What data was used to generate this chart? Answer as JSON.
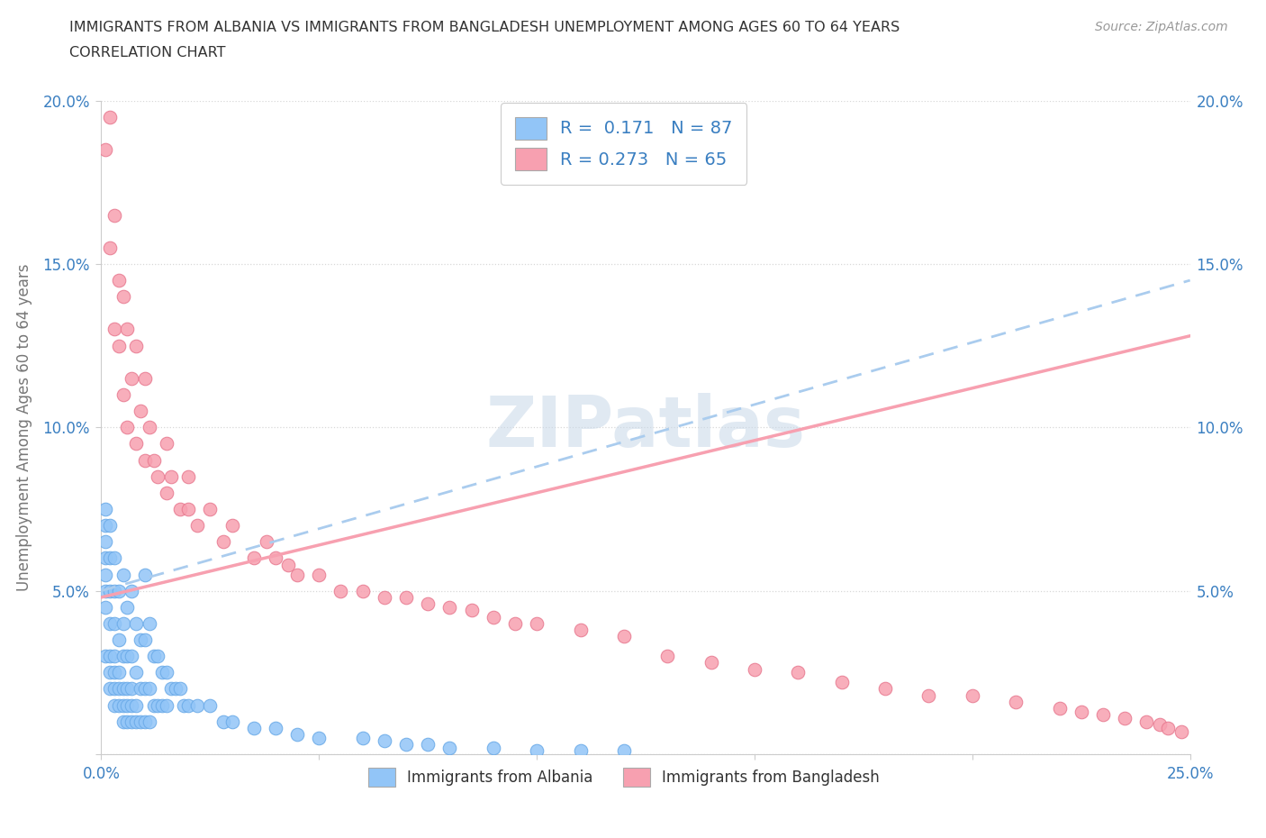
{
  "title_line1": "IMMIGRANTS FROM ALBANIA VS IMMIGRANTS FROM BANGLADESH UNEMPLOYMENT AMONG AGES 60 TO 64 YEARS",
  "title_line2": "CORRELATION CHART",
  "source_text": "Source: ZipAtlas.com",
  "ylabel": "Unemployment Among Ages 60 to 64 years",
  "xlim": [
    0.0,
    0.25
  ],
  "ylim": [
    0.0,
    0.2
  ],
  "albania_color": "#92C5F7",
  "albania_edge": "#6aaae8",
  "bangladesh_color": "#F7A0B0",
  "bangladesh_edge": "#e87a90",
  "albania_R": 0.171,
  "albania_N": 87,
  "bangladesh_R": 0.273,
  "bangladesh_N": 65,
  "legend_color": "#3A7FC1",
  "tick_color": "#3A7FC1",
  "ylabel_color": "#777777",
  "grid_color": "#d8d8d8",
  "watermark_color": "#c8d8e8",
  "title_color": "#333333",
  "source_color": "#999999",
  "albania_line_color": "#aaccee",
  "bangladesh_line_color": "#F7A0B0",
  "albania_line_intercept": 0.05,
  "albania_line_slope": 0.38,
  "bangladesh_line_intercept": 0.048,
  "bangladesh_line_slope": 0.32,
  "alb_x": [
    0.001,
    0.001,
    0.001,
    0.001,
    0.001,
    0.001,
    0.001,
    0.001,
    0.002,
    0.002,
    0.002,
    0.002,
    0.002,
    0.002,
    0.002,
    0.003,
    0.003,
    0.003,
    0.003,
    0.003,
    0.003,
    0.003,
    0.004,
    0.004,
    0.004,
    0.004,
    0.004,
    0.005,
    0.005,
    0.005,
    0.005,
    0.005,
    0.005,
    0.006,
    0.006,
    0.006,
    0.006,
    0.006,
    0.007,
    0.007,
    0.007,
    0.007,
    0.007,
    0.008,
    0.008,
    0.008,
    0.008,
    0.009,
    0.009,
    0.009,
    0.01,
    0.01,
    0.01,
    0.01,
    0.011,
    0.011,
    0.011,
    0.012,
    0.012,
    0.013,
    0.013,
    0.014,
    0.014,
    0.015,
    0.015,
    0.016,
    0.017,
    0.018,
    0.019,
    0.02,
    0.022,
    0.025,
    0.028,
    0.03,
    0.035,
    0.04,
    0.045,
    0.05,
    0.06,
    0.065,
    0.07,
    0.075,
    0.08,
    0.09,
    0.1,
    0.11,
    0.12
  ],
  "alb_y": [
    0.03,
    0.045,
    0.05,
    0.055,
    0.06,
    0.065,
    0.07,
    0.075,
    0.02,
    0.025,
    0.03,
    0.04,
    0.05,
    0.06,
    0.07,
    0.015,
    0.02,
    0.025,
    0.03,
    0.04,
    0.05,
    0.06,
    0.015,
    0.02,
    0.025,
    0.035,
    0.05,
    0.01,
    0.015,
    0.02,
    0.03,
    0.04,
    0.055,
    0.01,
    0.015,
    0.02,
    0.03,
    0.045,
    0.01,
    0.015,
    0.02,
    0.03,
    0.05,
    0.01,
    0.015,
    0.025,
    0.04,
    0.01,
    0.02,
    0.035,
    0.01,
    0.02,
    0.035,
    0.055,
    0.01,
    0.02,
    0.04,
    0.015,
    0.03,
    0.015,
    0.03,
    0.015,
    0.025,
    0.015,
    0.025,
    0.02,
    0.02,
    0.02,
    0.015,
    0.015,
    0.015,
    0.015,
    0.01,
    0.01,
    0.008,
    0.008,
    0.006,
    0.005,
    0.005,
    0.004,
    0.003,
    0.003,
    0.002,
    0.002,
    0.001,
    0.001,
    0.001
  ],
  "ban_x": [
    0.001,
    0.002,
    0.002,
    0.003,
    0.003,
    0.004,
    0.004,
    0.005,
    0.005,
    0.006,
    0.006,
    0.007,
    0.008,
    0.008,
    0.009,
    0.01,
    0.01,
    0.011,
    0.012,
    0.013,
    0.015,
    0.015,
    0.016,
    0.018,
    0.02,
    0.02,
    0.022,
    0.025,
    0.028,
    0.03,
    0.035,
    0.038,
    0.04,
    0.043,
    0.045,
    0.05,
    0.055,
    0.06,
    0.065,
    0.07,
    0.075,
    0.08,
    0.085,
    0.09,
    0.095,
    0.1,
    0.11,
    0.12,
    0.13,
    0.14,
    0.15,
    0.16,
    0.17,
    0.18,
    0.19,
    0.2,
    0.21,
    0.22,
    0.225,
    0.23,
    0.235,
    0.24,
    0.243,
    0.245,
    0.248
  ],
  "ban_y": [
    0.185,
    0.195,
    0.155,
    0.165,
    0.13,
    0.145,
    0.125,
    0.14,
    0.11,
    0.13,
    0.1,
    0.115,
    0.125,
    0.095,
    0.105,
    0.115,
    0.09,
    0.1,
    0.09,
    0.085,
    0.095,
    0.08,
    0.085,
    0.075,
    0.085,
    0.075,
    0.07,
    0.075,
    0.065,
    0.07,
    0.06,
    0.065,
    0.06,
    0.058,
    0.055,
    0.055,
    0.05,
    0.05,
    0.048,
    0.048,
    0.046,
    0.045,
    0.044,
    0.042,
    0.04,
    0.04,
    0.038,
    0.036,
    0.03,
    0.028,
    0.026,
    0.025,
    0.022,
    0.02,
    0.018,
    0.018,
    0.016,
    0.014,
    0.013,
    0.012,
    0.011,
    0.01,
    0.009,
    0.008,
    0.007
  ]
}
